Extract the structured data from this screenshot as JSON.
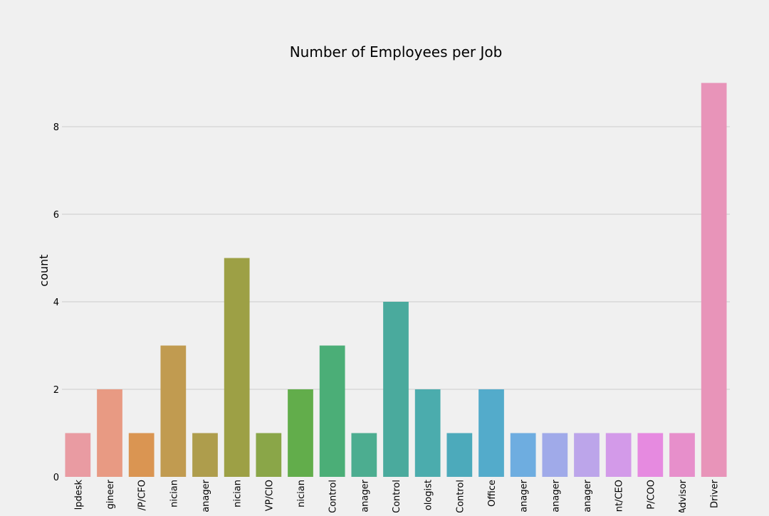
{
  "chart_data": {
    "type": "bar",
    "title": "Number of Employees per Job",
    "xlabel": "",
    "ylabel": "count",
    "ylim": [
      0,
      9
    ],
    "yticks": [
      0,
      2,
      4,
      6,
      8
    ],
    "grid": true,
    "categories": [
      "lpdesk",
      "gineer",
      "/P/CFO",
      "nician",
      "anager",
      "nician",
      "VP/CIO",
      "nician",
      "Control",
      "anager",
      "Control",
      "ologist",
      "Control",
      "Office",
      "anager",
      "anager",
      "anager",
      "nt/CEO",
      "P/COO",
      "Advisor",
      "Driver"
    ],
    "values": [
      1,
      2,
      1,
      3,
      1,
      5,
      1,
      2,
      3,
      1,
      4,
      2,
      1,
      2,
      1,
      1,
      1,
      1,
      1,
      1,
      9
    ],
    "colors": [
      "#e99ba2",
      "#e89a83",
      "#da9552",
      "#c19b50",
      "#ae9d4c",
      "#9da045",
      "#8aa648",
      "#62ad4b",
      "#4bae77",
      "#4cad90",
      "#4aaa9d",
      "#4bacad",
      "#4caabb",
      "#53abcb",
      "#6eade0",
      "#a0aae9",
      "#bca5ea",
      "#d39ae9",
      "#e68ae0",
      "#e78fcb",
      "#e894b9"
    ]
  }
}
